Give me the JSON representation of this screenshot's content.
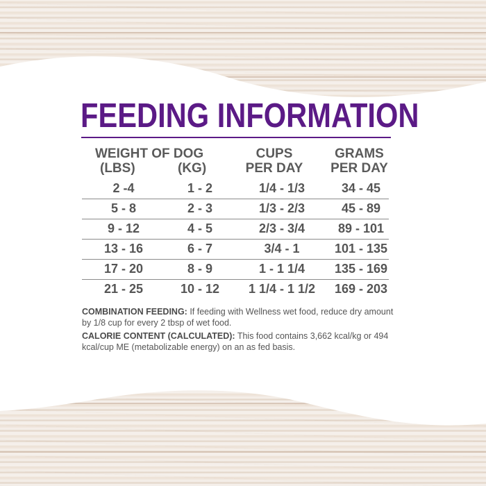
{
  "title": "FEEDING INFORMATION",
  "headers": {
    "weight": "WEIGHT OF DOG",
    "lbs": "(LBS)",
    "kg": "(KG)",
    "cups_1": "CUPS",
    "cups_2": "PER DAY",
    "grams_1": "GRAMS",
    "grams_2": "PER DAY"
  },
  "rows": [
    {
      "lbs": "2 -4",
      "kg": "1 - 2",
      "cups": "1/4 - 1/3",
      "grams": "34 - 45"
    },
    {
      "lbs": "5 - 8",
      "kg": "2 - 3",
      "cups": "1/3 - 2/3",
      "grams": "45 - 89"
    },
    {
      "lbs": "9 - 12",
      "kg": "4 - 5",
      "cups": "2/3 - 3/4",
      "grams": "89 - 101"
    },
    {
      "lbs": "13 - 16",
      "kg": "6 - 7",
      "cups": "3/4 - 1",
      "grams": "101 - 135"
    },
    {
      "lbs": "17 - 20",
      "kg": "8 - 9",
      "cups": "1 - 1 1/4",
      "grams": "135 - 169"
    },
    {
      "lbs": "21 - 25",
      "kg": "10 - 12",
      "cups": "1 1/4 - 1 1/2",
      "grams": "169 - 203"
    }
  ],
  "notes": {
    "combination_label": "COMBINATION FEEDING:",
    "combination_text": " If feeding with Wellness wet food, reduce dry amount by 1/8 cup for every 2 tbsp of wet food.",
    "calorie_label": "CALORIE CONTENT (CALCULATED):",
    "calorie_text": " This food contains 3,662 kcal/kg or 494 kcal/cup ME (metabolizable energy) on an as fed basis."
  },
  "colors": {
    "title": "#5b1a86",
    "text": "#555555",
    "background": "#ffffff"
  }
}
